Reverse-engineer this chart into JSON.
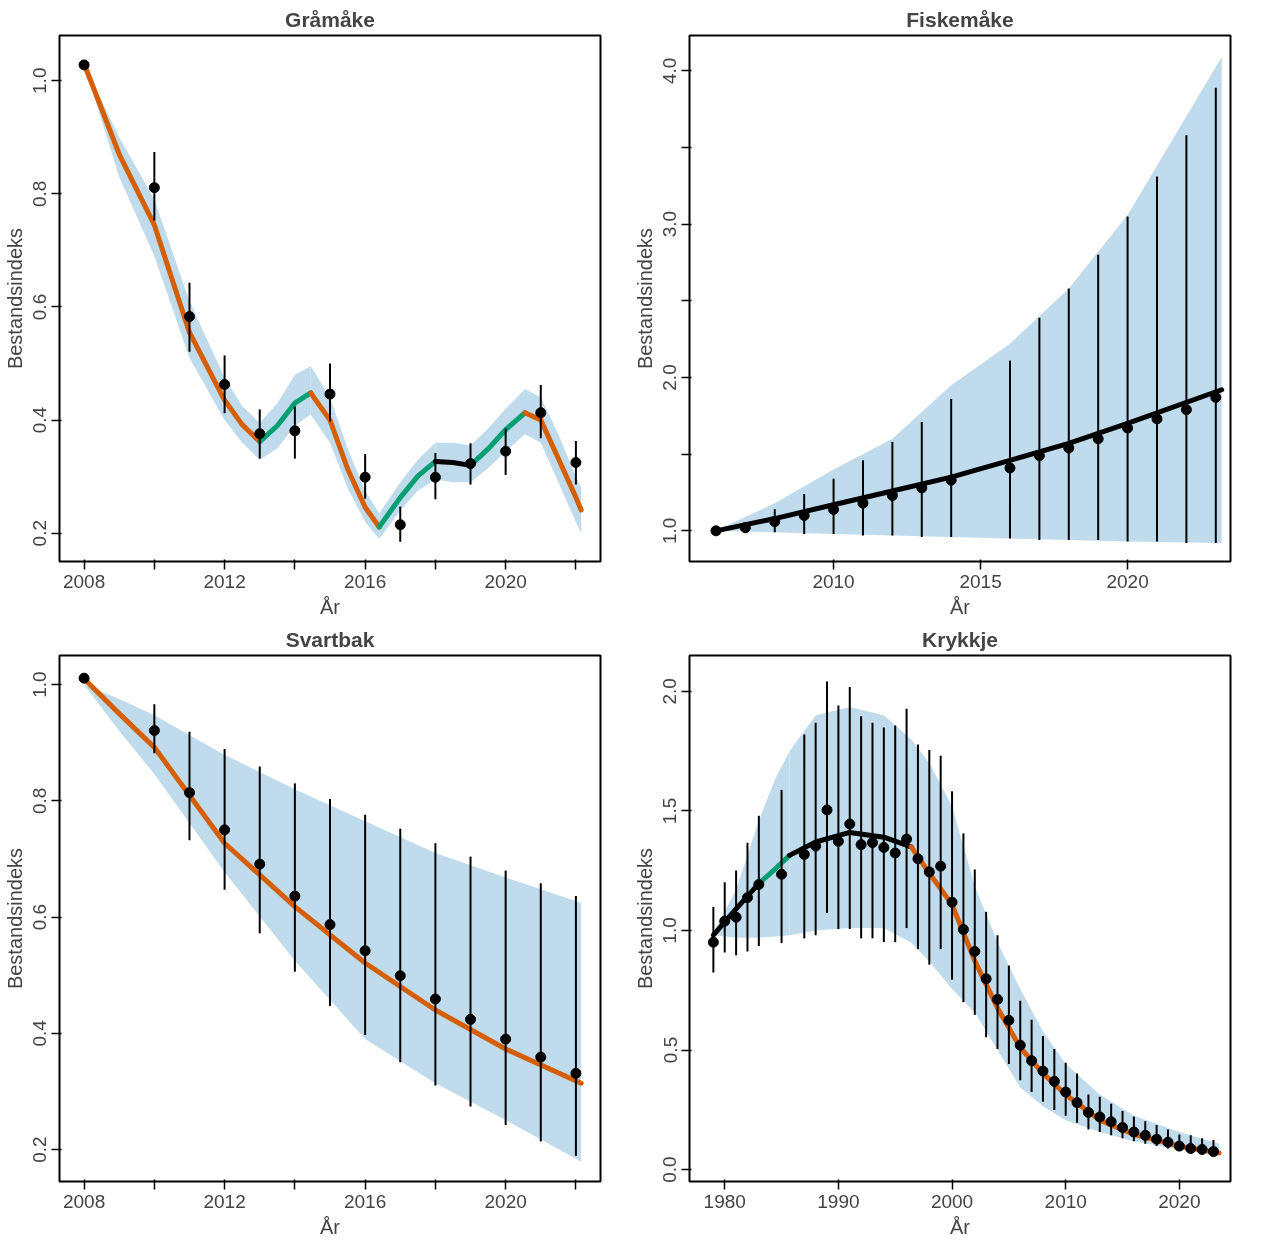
{
  "chart_data": [
    {
      "type": "line",
      "title": "Gråmåke",
      "xlabel": "År",
      "ylabel": "Bestandsindeks",
      "grid": false,
      "xlim": [
        2007.3,
        2022.7
      ],
      "ylim": [
        0.15,
        1.08
      ],
      "xticks": [
        2008,
        {
          "value": 2010,
          "label": null
        },
        2012,
        {
          "value": 2014,
          "label": null
        },
        2016,
        {
          "value": 2018,
          "label": null
        },
        2020,
        {
          "value": 2022,
          "label": null
        }
      ],
      "yticks": [
        {
          "value": 0.2,
          "label": "0.2"
        },
        {
          "value": 0.4,
          "label": "0.4"
        },
        {
          "value": 0.6,
          "label": "0.6"
        },
        {
          "value": 0.8,
          "label": "0.8"
        },
        {
          "value": 1.0,
          "label": "1.0"
        }
      ],
      "series": [
        {
          "color": "#d55e00",
          "x": [
            2008,
            2009,
            2010,
            2011,
            2012,
            2012.5,
            2013
          ],
          "values": [
            1.03,
            0.87,
            0.745,
            0.555,
            0.435,
            0.392,
            0.362
          ],
          "lower": [
            1.03,
            0.83,
            0.69,
            0.51,
            0.4,
            0.36,
            0.33
          ],
          "upper": [
            1.03,
            0.9,
            0.79,
            0.61,
            0.475,
            0.425,
            0.395
          ]
        },
        {
          "color": "#009e73",
          "x": [
            2013,
            2013.5,
            2014,
            2014.45
          ],
          "values": [
            0.362,
            0.39,
            0.43,
            0.448
          ],
          "lower": [
            0.33,
            0.35,
            0.39,
            0.41
          ],
          "upper": [
            0.395,
            0.43,
            0.48,
            0.495
          ]
        },
        {
          "color": "#d55e00",
          "x": [
            2014.45,
            2015,
            2015.5,
            2016,
            2016.4
          ],
          "values": [
            0.448,
            0.4,
            0.314,
            0.246,
            0.211
          ],
          "lower": [
            0.41,
            0.36,
            0.28,
            0.22,
            0.19
          ],
          "upper": [
            0.495,
            0.44,
            0.35,
            0.275,
            0.235
          ]
        },
        {
          "color": "#009e73",
          "x": [
            2016.4,
            2017,
            2017.5,
            2018
          ],
          "values": [
            0.211,
            0.263,
            0.301,
            0.327
          ],
          "lower": [
            0.19,
            0.24,
            0.275,
            0.295
          ],
          "upper": [
            0.235,
            0.29,
            0.33,
            0.36
          ]
        },
        {
          "color": "#000000",
          "x": [
            2018,
            2018.5,
            2019
          ],
          "values": [
            0.327,
            0.325,
            0.32
          ],
          "lower": [
            0.295,
            0.29,
            0.29
          ],
          "upper": [
            0.36,
            0.36,
            0.355
          ]
        },
        {
          "color": "#009e73",
          "x": [
            2019,
            2019.5,
            2020,
            2020.55
          ],
          "values": [
            0.32,
            0.349,
            0.383,
            0.413
          ],
          "lower": [
            0.29,
            0.315,
            0.345,
            0.375
          ],
          "upper": [
            0.355,
            0.385,
            0.42,
            0.455
          ]
        },
        {
          "color": "#d55e00",
          "x": [
            2020.55,
            2021,
            2021.5,
            2022,
            2022.15
          ],
          "values": [
            0.413,
            0.4,
            0.332,
            0.263,
            0.241
          ],
          "lower": [
            0.375,
            0.36,
            0.29,
            0.22,
            0.2
          ],
          "upper": [
            0.455,
            0.44,
            0.375,
            0.3,
            0.28
          ]
        },
        {
          "type": "scatter",
          "marker": "circle",
          "color": "#000000",
          "x": [
            2008,
            2010,
            2011,
            2012,
            2013,
            2014,
            2015,
            2016,
            2017,
            2018,
            2019,
            2020,
            2021,
            2022
          ],
          "values": [
            1.028,
            0.811,
            0.583,
            0.463,
            0.376,
            0.381,
            0.446,
            0.299,
            0.215,
            0.299,
            0.323,
            0.345,
            0.413,
            0.325
          ],
          "errors": [
            null,
            [
              0.753,
              0.874
            ],
            [
              0.521,
              0.643
            ],
            [
              0.412,
              0.514
            ],
            [
              0.332,
              0.419
            ],
            [
              0.332,
              0.424
            ],
            [
              0.398,
              0.5
            ],
            [
              0.261,
              0.34
            ],
            [
              0.185,
              0.247
            ],
            [
              0.26,
              0.342
            ],
            [
              0.286,
              0.359
            ],
            [
              0.303,
              0.385
            ],
            [
              0.368,
              0.462
            ],
            [
              0.286,
              0.363
            ]
          ]
        }
      ]
    },
    {
      "type": "line",
      "title": "Fiskemåke",
      "xlabel": "År",
      "ylabel": "Bestandsindeks",
      "grid": false,
      "xlim": [
        2005.1,
        2023.5
      ],
      "ylim": [
        0.8,
        4.23
      ],
      "xticks": [
        2010,
        2015,
        2020
      ],
      "yticks": [
        {
          "value": 1.0,
          "label": "1.0"
        },
        {
          "value": 1.5,
          "label": null
        },
        {
          "value": 2.0,
          "label": "2.0"
        },
        {
          "value": 2.5,
          "label": null
        },
        {
          "value": 3.0,
          "label": "3.0"
        },
        {
          "value": 3.5,
          "label": null
        },
        {
          "value": 4.0,
          "label": "4.0"
        }
      ],
      "series": [
        {
          "color": "#000000",
          "x": [
            2006,
            2008,
            2010,
            2012,
            2014,
            2016,
            2018,
            2020,
            2023.2
          ],
          "values": [
            1.0,
            1.08,
            1.17,
            1.26,
            1.35,
            1.46,
            1.57,
            1.7,
            1.92
          ],
          "lower": [
            1.0,
            0.99,
            0.98,
            0.97,
            0.96,
            0.95,
            0.94,
            0.93,
            0.92
          ],
          "upper": [
            1.0,
            1.18,
            1.4,
            1.6,
            1.95,
            2.22,
            2.58,
            3.06,
            4.09
          ]
        },
        {
          "type": "scatter",
          "marker": "circle",
          "color": "#000000",
          "x": [
            2006,
            2007,
            2008,
            2009,
            2010,
            2011,
            2012,
            2013,
            2014,
            2016,
            2017,
            2018,
            2019,
            2020,
            2021,
            2022,
            2023
          ],
          "values": [
            1.0,
            1.02,
            1.06,
            1.1,
            1.14,
            1.18,
            1.23,
            1.28,
            1.33,
            1.41,
            1.49,
            1.54,
            1.6,
            1.67,
            1.73,
            1.79,
            1.87
          ],
          "errors": [
            null,
            null,
            [
              0.99,
              1.14
            ],
            [
              0.98,
              1.24
            ],
            [
              0.98,
              1.34
            ],
            [
              0.97,
              1.46
            ],
            [
              0.97,
              1.58
            ],
            [
              0.96,
              1.71
            ],
            [
              0.96,
              1.86
            ],
            [
              0.95,
              2.11
            ],
            [
              0.94,
              2.39
            ],
            [
              0.94,
              2.58
            ],
            [
              0.94,
              2.8
            ],
            [
              0.93,
              3.05
            ],
            [
              0.93,
              3.31
            ],
            [
              0.92,
              3.58
            ],
            [
              0.92,
              3.89
            ]
          ]
        }
      ]
    },
    {
      "type": "line",
      "title": "Svartbak",
      "xlabel": "År",
      "ylabel": "Bestandsindeks",
      "grid": false,
      "xlim": [
        2007.3,
        2022.7
      ],
      "ylim": [
        0.145,
        1.05
      ],
      "xticks": [
        2008,
        {
          "value": 2010,
          "label": null
        },
        2012,
        {
          "value": 2014,
          "label": null
        },
        2016,
        {
          "value": 2018,
          "label": null
        },
        2020,
        {
          "value": 2022,
          "label": null
        }
      ],
      "yticks": [
        {
          "value": 0.2,
          "label": "0.2"
        },
        {
          "value": 0.4,
          "label": "0.4"
        },
        {
          "value": 0.6,
          "label": "0.6"
        },
        {
          "value": 0.8,
          "label": "0.8"
        },
        {
          "value": 1.0,
          "label": "1.0"
        }
      ],
      "series": [
        {
          "color": "#d55e00",
          "x": [
            2008,
            2009,
            2010,
            2012,
            2014,
            2016,
            2018,
            2020,
            2022.15
          ],
          "values": [
            1.01,
            0.95,
            0.892,
            0.727,
            0.618,
            0.521,
            0.44,
            0.373,
            0.314
          ],
          "lower": [
            1.0,
            0.92,
            0.846,
            0.677,
            0.525,
            0.39,
            0.314,
            0.251,
            0.179
          ],
          "upper": [
            1.0,
            0.975,
            0.947,
            0.879,
            0.82,
            0.765,
            0.71,
            0.668,
            0.624
          ]
        },
        {
          "type": "scatter",
          "marker": "circle",
          "color": "#000000",
          "x": [
            2008,
            2010,
            2011,
            2012,
            2013,
            2014,
            2015,
            2016,
            2017,
            2018,
            2019,
            2020,
            2021,
            2022
          ],
          "values": [
            1.011,
            0.921,
            0.814,
            0.75,
            0.691,
            0.636,
            0.587,
            0.542,
            0.499,
            0.459,
            0.424,
            0.39,
            0.359,
            0.331
          ],
          "errors": [
            null,
            [
              0.882,
              0.966
            ],
            [
              0.732,
              0.919
            ],
            [
              0.647,
              0.889
            ],
            [
              0.572,
              0.859
            ],
            [
              0.506,
              0.83
            ],
            [
              0.447,
              0.803
            ],
            [
              0.397,
              0.776
            ],
            [
              0.35,
              0.752
            ],
            [
              0.31,
              0.727
            ],
            [
              0.274,
              0.704
            ],
            [
              0.242,
              0.68
            ],
            [
              0.214,
              0.658
            ],
            [
              0.189,
              0.636
            ]
          ]
        }
      ]
    },
    {
      "type": "line",
      "title": "Krykkje",
      "xlabel": "År",
      "ylabel": "Bestandsindeks",
      "grid": false,
      "xlim": [
        1976.9,
        2024.5
      ],
      "ylim": [
        -0.05,
        2.15
      ],
      "xticks": [
        1980,
        1990,
        2000,
        2010,
        2020
      ],
      "yticks": [
        {
          "value": 0.0,
          "label": "0.0"
        },
        {
          "value": 0.5,
          "label": "0.5"
        },
        {
          "value": 1.0,
          "label": "1.0"
        },
        {
          "value": 1.5,
          "label": "1.5"
        },
        {
          "value": 2.0,
          "label": "2.0"
        }
      ],
      "series": [
        {
          "color": "#000000",
          "x": [
            1979,
            1981,
            1983
          ],
          "values": [
            0.98,
            1.09,
            1.196
          ],
          "lower": [
            0.98,
            0.97,
            0.97
          ],
          "upper": [
            0.99,
            1.17,
            1.46
          ]
        },
        {
          "color": "#009e73",
          "x": [
            1983,
            1984.5,
            1985.7
          ],
          "values": [
            1.196,
            1.26,
            1.314
          ],
          "lower": [
            0.97,
            0.975,
            0.98
          ],
          "upper": [
            1.46,
            1.64,
            1.75
          ]
        },
        {
          "color": "#000000",
          "x": [
            1985.7,
            1988,
            1991,
            1994,
            1996.4
          ],
          "values": [
            1.314,
            1.37,
            1.41,
            1.39,
            1.35
          ],
          "lower": [
            0.98,
            1.0,
            1.01,
            1.01,
            0.95
          ],
          "upper": [
            1.75,
            1.9,
            1.935,
            1.9,
            1.8
          ]
        },
        {
          "color": "#d55e00",
          "x": [
            1996.4,
            1998,
            2000,
            2002,
            2004,
            2006,
            2008,
            2010,
            2013,
            2016,
            2020,
            2023.5
          ],
          "values": [
            1.35,
            1.24,
            1.108,
            0.873,
            0.676,
            0.51,
            0.402,
            0.314,
            0.206,
            0.147,
            0.098,
            0.069
          ],
          "lower": [
            0.95,
            0.87,
            0.755,
            0.657,
            0.5,
            0.343,
            0.265,
            0.206,
            0.157,
            0.118,
            0.084,
            0.059
          ],
          "upper": [
            1.8,
            1.7,
            1.52,
            1.186,
            0.951,
            0.755,
            0.578,
            0.441,
            0.314,
            0.225,
            0.157,
            0.108
          ]
        },
        {
          "type": "scatter",
          "marker": "circle",
          "color": "#000000",
          "x": [
            1979,
            1980,
            1981,
            1982,
            1983,
            1985,
            1987,
            1988,
            1989,
            1990,
            1991,
            1992,
            1993,
            1994,
            1995,
            1996,
            1997,
            1998,
            1999,
            2000,
            2001,
            2002,
            2003,
            2004,
            2005,
            2006,
            2007,
            2008,
            2009,
            2010,
            2011,
            2012,
            2013,
            2014,
            2015,
            2016,
            2017,
            2018,
            2019,
            2020,
            2021,
            2022,
            2023
          ],
          "values": [
            0.951,
            1.039,
            1.055,
            1.137,
            1.192,
            1.235,
            1.318,
            1.353,
            1.504,
            1.373,
            1.445,
            1.359,
            1.367,
            1.347,
            1.324,
            1.382,
            1.3,
            1.245,
            1.269,
            1.118,
            1.004,
            0.912,
            0.798,
            0.712,
            0.624,
            0.52,
            0.455,
            0.412,
            0.369,
            0.324,
            0.28,
            0.239,
            0.22,
            0.2,
            0.176,
            0.157,
            0.143,
            0.127,
            0.114,
            0.098,
            0.088,
            0.084,
            0.075
          ],
          "errors": [
            [
              0.824,
              1.098
            ],
            [
              0.908,
              1.202
            ],
            [
              0.896,
              1.251
            ],
            [
              0.912,
              1.367
            ],
            [
              0.935,
              1.48
            ],
            [
              0.947,
              1.588
            ],
            [
              0.967,
              1.82
            ],
            [
              0.98,
              1.869
            ],
            [
              1.073,
              2.041
            ],
            [
              1.006,
              1.941
            ],
            [
              1.006,
              2.018
            ],
            [
              0.967,
              1.896
            ],
            [
              0.967,
              1.869
            ],
            [
              0.951,
              1.849
            ],
            [
              0.951,
              1.857
            ],
            [
              1.01,
              1.927
            ],
            [
              0.922,
              1.778
            ],
            [
              0.857,
              1.755
            ],
            [
              0.922,
              1.731
            ],
            [
              0.794,
              1.582
            ],
            [
              0.7,
              1.406
            ],
            [
              0.647,
              1.255
            ],
            [
              0.553,
              1.078
            ],
            [
              0.504,
              0.98
            ],
            [
              0.441,
              0.853
            ],
            [
              0.373,
              0.706
            ],
            [
              0.324,
              0.627
            ],
            [
              0.284,
              0.559
            ],
            [
              0.249,
              0.504
            ],
            [
              0.225,
              0.447
            ],
            [
              0.196,
              0.402
            ],
            [
              0.167,
              0.314
            ],
            [
              0.157,
              0.304
            ],
            [
              0.143,
              0.275
            ],
            [
              0.131,
              0.245
            ],
            [
              0.118,
              0.222
            ],
            [
              0.108,
              0.202
            ],
            [
              0.098,
              0.186
            ],
            [
              0.088,
              0.167
            ],
            [
              0.078,
              0.147
            ],
            [
              0.073,
              0.143
            ],
            [
              0.069,
              0.131
            ],
            [
              0.059,
              0.124
            ]
          ]
        }
      ]
    }
  ]
}
